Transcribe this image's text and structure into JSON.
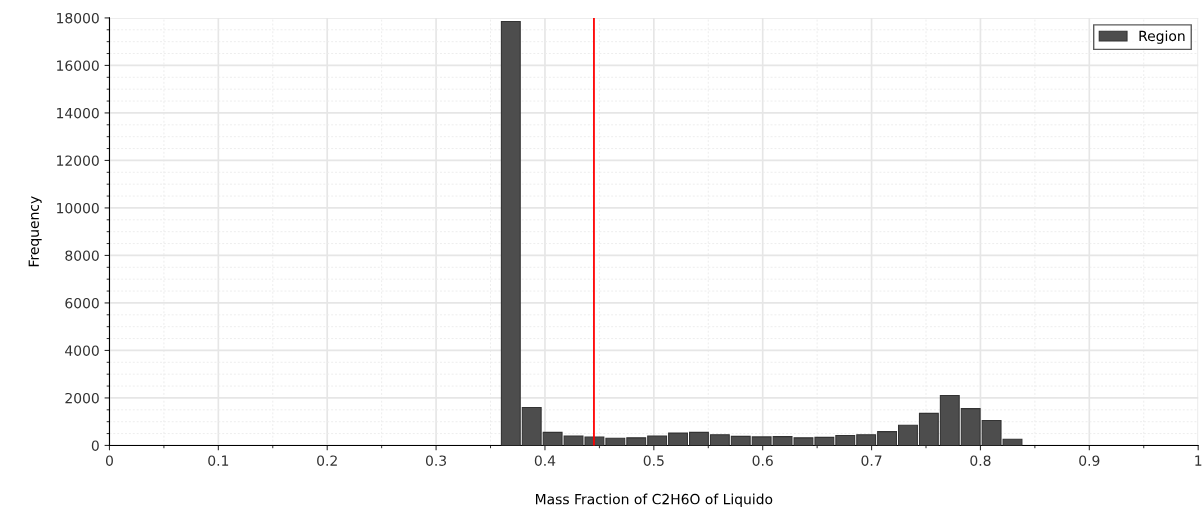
{
  "chart_data": {
    "type": "histogram",
    "xlabel": "Mass Fraction of C2H6O of Liquido",
    "ylabel": "Frequency",
    "bins": [
      0.36,
      0.3792,
      0.3984,
      0.4176,
      0.4368,
      0.456,
      0.4752,
      0.4944,
      0.5136,
      0.5328,
      0.552,
      0.5712,
      0.5904,
      0.6096,
      0.6288,
      0.648,
      0.6672,
      0.6864,
      0.7056,
      0.7248,
      0.744,
      0.7632,
      0.7824,
      0.8016,
      0.8208,
      0.84
    ],
    "series": [
      {
        "name": "Region",
        "color": "#4d4d4d",
        "values": [
          17850,
          1600,
          550,
          400,
          350,
          300,
          320,
          400,
          520,
          550,
          450,
          380,
          360,
          370,
          320,
          340,
          420,
          450,
          580,
          850,
          1350,
          2100,
          1550,
          1050,
          260
        ]
      }
    ],
    "xlim": [
      0,
      1
    ],
    "xticks": [
      0,
      0.1,
      0.2,
      0.3,
      0.4,
      0.5,
      0.6,
      0.7,
      0.8,
      0.9,
      1
    ],
    "ylim": [
      0,
      18000
    ],
    "yticks": [
      0,
      2000,
      4000,
      6000,
      8000,
      10000,
      12000,
      14000,
      16000,
      18000
    ],
    "ref_lines": [
      {
        "axis": "x",
        "value": 0.445,
        "color": "#ff0000"
      }
    ],
    "grid": true,
    "legend": "top right"
  }
}
